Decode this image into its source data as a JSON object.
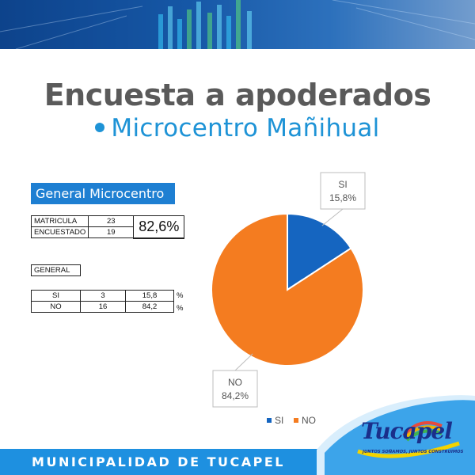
{
  "header": {
    "title": "Encuesta a apoderados",
    "subtitle": "Microcentro Mañihual"
  },
  "general_label": "General Microcentro",
  "stats_table": {
    "rows": [
      {
        "label": "MATRICULA",
        "value": "23"
      },
      {
        "label": "ENCUESTADO",
        "value": "19"
      }
    ],
    "percentage": "82,6%"
  },
  "general_table_label": "GENERAL",
  "answers_table": {
    "rows": [
      {
        "label": "SI",
        "count": "3",
        "percent": "15,8",
        "unit": "%"
      },
      {
        "label": "NO",
        "count": "16",
        "percent": "84,2",
        "unit": "%"
      }
    ]
  },
  "chart_data": {
    "type": "pie",
    "categories": [
      "SI",
      "NO"
    ],
    "values": [
      15.8,
      84.2
    ],
    "data_labels": [
      {
        "name": "SI",
        "value": "15,8%"
      },
      {
        "name": "NO",
        "value": "84,2%"
      }
    ],
    "legend": [
      "SI",
      "NO"
    ],
    "legend_position": "bottom",
    "colors": [
      "#1565c0",
      "#f47c20"
    ]
  },
  "footer": {
    "municipality": "MUNICIPALIDAD DE TUCAPEL",
    "logo_text": "Tucapel",
    "logo_tagline": "JUNTOS SOÑAMOS, JUNTOS CONSTRUIMOS"
  },
  "colors": {
    "accent_blue": "#1e90e0",
    "title_gray": "#5a5a5a",
    "subtitle_blue": "#1e93d6",
    "label_blue": "#1e7fd2"
  }
}
